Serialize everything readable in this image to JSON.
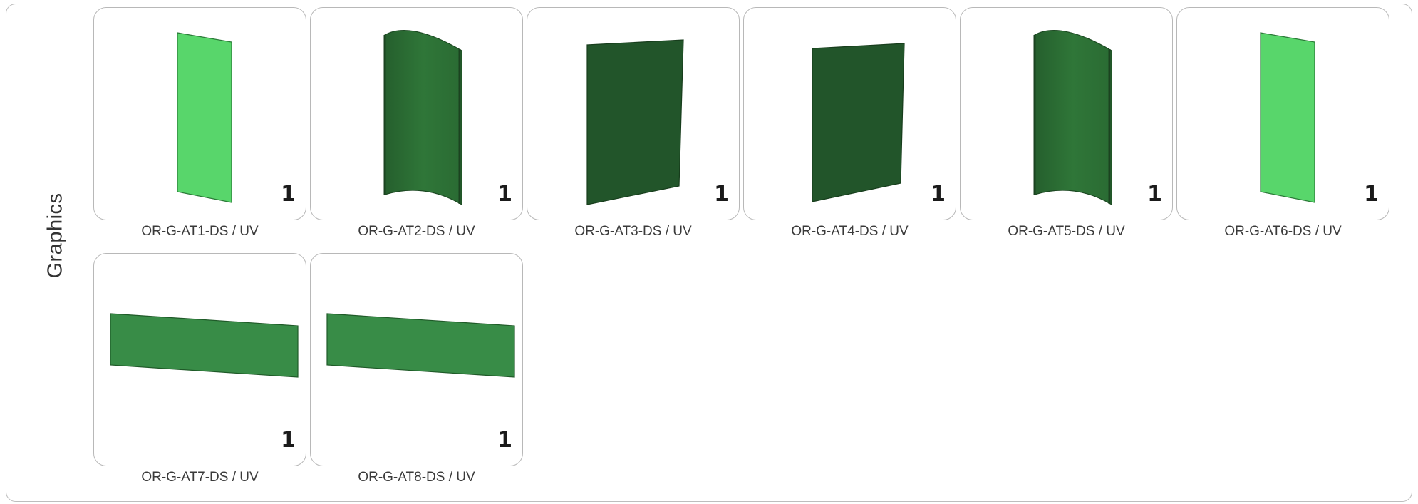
{
  "section": {
    "title": "Graphics"
  },
  "items": [
    {
      "code": "OR-G-AT1-DS / UV",
      "qty": "1",
      "shape": "flat-tall",
      "color": "#58d66b"
    },
    {
      "code": "OR-G-AT2-DS / UV",
      "qty": "1",
      "shape": "curved-tall",
      "color": "#2c6f35"
    },
    {
      "code": "OR-G-AT3-DS / UV",
      "qty": "1",
      "shape": "flat-wide-tall",
      "color": "#22552a"
    },
    {
      "code": "OR-G-AT4-DS / UV",
      "qty": "1",
      "shape": "flat-wide-tall",
      "color": "#22552a"
    },
    {
      "code": "OR-G-AT5-DS / UV",
      "qty": "1",
      "shape": "curved-tall",
      "color": "#2c6f35"
    },
    {
      "code": "OR-G-AT6-DS / UV",
      "qty": "1",
      "shape": "flat-tall",
      "color": "#58d66b"
    },
    {
      "code": "OR-G-AT7-DS / UV",
      "qty": "1",
      "shape": "flat-horizontal",
      "color": "#388c47"
    },
    {
      "code": "OR-G-AT8-DS / UV",
      "qty": "1",
      "shape": "flat-horizontal",
      "color": "#388c47"
    }
  ]
}
